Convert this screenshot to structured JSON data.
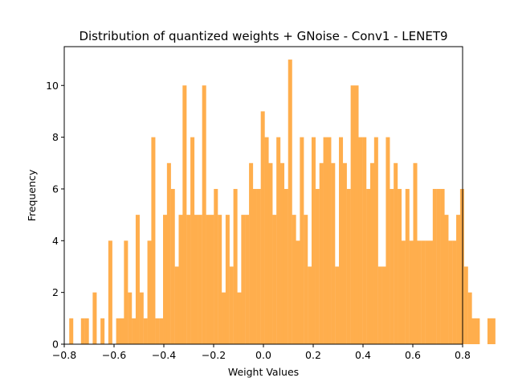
{
  "chart_data": {
    "type": "bar",
    "title": "Distribution of quantized weights + GNoise - Conv1 - LENET9",
    "xlabel": "Weight Values",
    "ylabel": "Frequency",
    "xlim": [
      -0.8,
      0.8
    ],
    "ylim": [
      0,
      11.5
    ],
    "xticks": [
      -0.8,
      -0.6,
      -0.4,
      -0.2,
      0.0,
      0.2,
      0.4,
      0.6,
      0.8
    ],
    "xtick_labels": [
      "−0.8",
      "−0.6",
      "−0.4",
      "−0.2",
      "0.0",
      "0.2",
      "0.4",
      "0.6",
      "0.8"
    ],
    "yticks": [
      0,
      2,
      4,
      6,
      8,
      10
    ],
    "ytick_labels": [
      "0",
      "2",
      "4",
      "6",
      "8",
      "10"
    ],
    "color": "#ffae4d",
    "grid": false,
    "bin_start": -0.78,
    "bin_width": 0.0157,
    "values": [
      1,
      0,
      0,
      1,
      1,
      0,
      2,
      0,
      1,
      0,
      4,
      0,
      1,
      1,
      4,
      2,
      1,
      5,
      2,
      1,
      4,
      8,
      1,
      1,
      5,
      7,
      6,
      3,
      5,
      10,
      5,
      8,
      5,
      5,
      10,
      5,
      5,
      6,
      5,
      2,
      5,
      3,
      6,
      2,
      5,
      5,
      7,
      6,
      6,
      9,
      8,
      7,
      5,
      8,
      7,
      6,
      11,
      5,
      4,
      8,
      5,
      3,
      8,
      6,
      7,
      8,
      8,
      7,
      3,
      8,
      7,
      6,
      10,
      10,
      8,
      8,
      6,
      7,
      8,
      3,
      3,
      8,
      6,
      7,
      6,
      4,
      6,
      4,
      7,
      4,
      4,
      4,
      4,
      6,
      6,
      6,
      5,
      4,
      4,
      5,
      6,
      3,
      2,
      1,
      1,
      0,
      0,
      1,
      1,
      0,
      0
    ]
  }
}
